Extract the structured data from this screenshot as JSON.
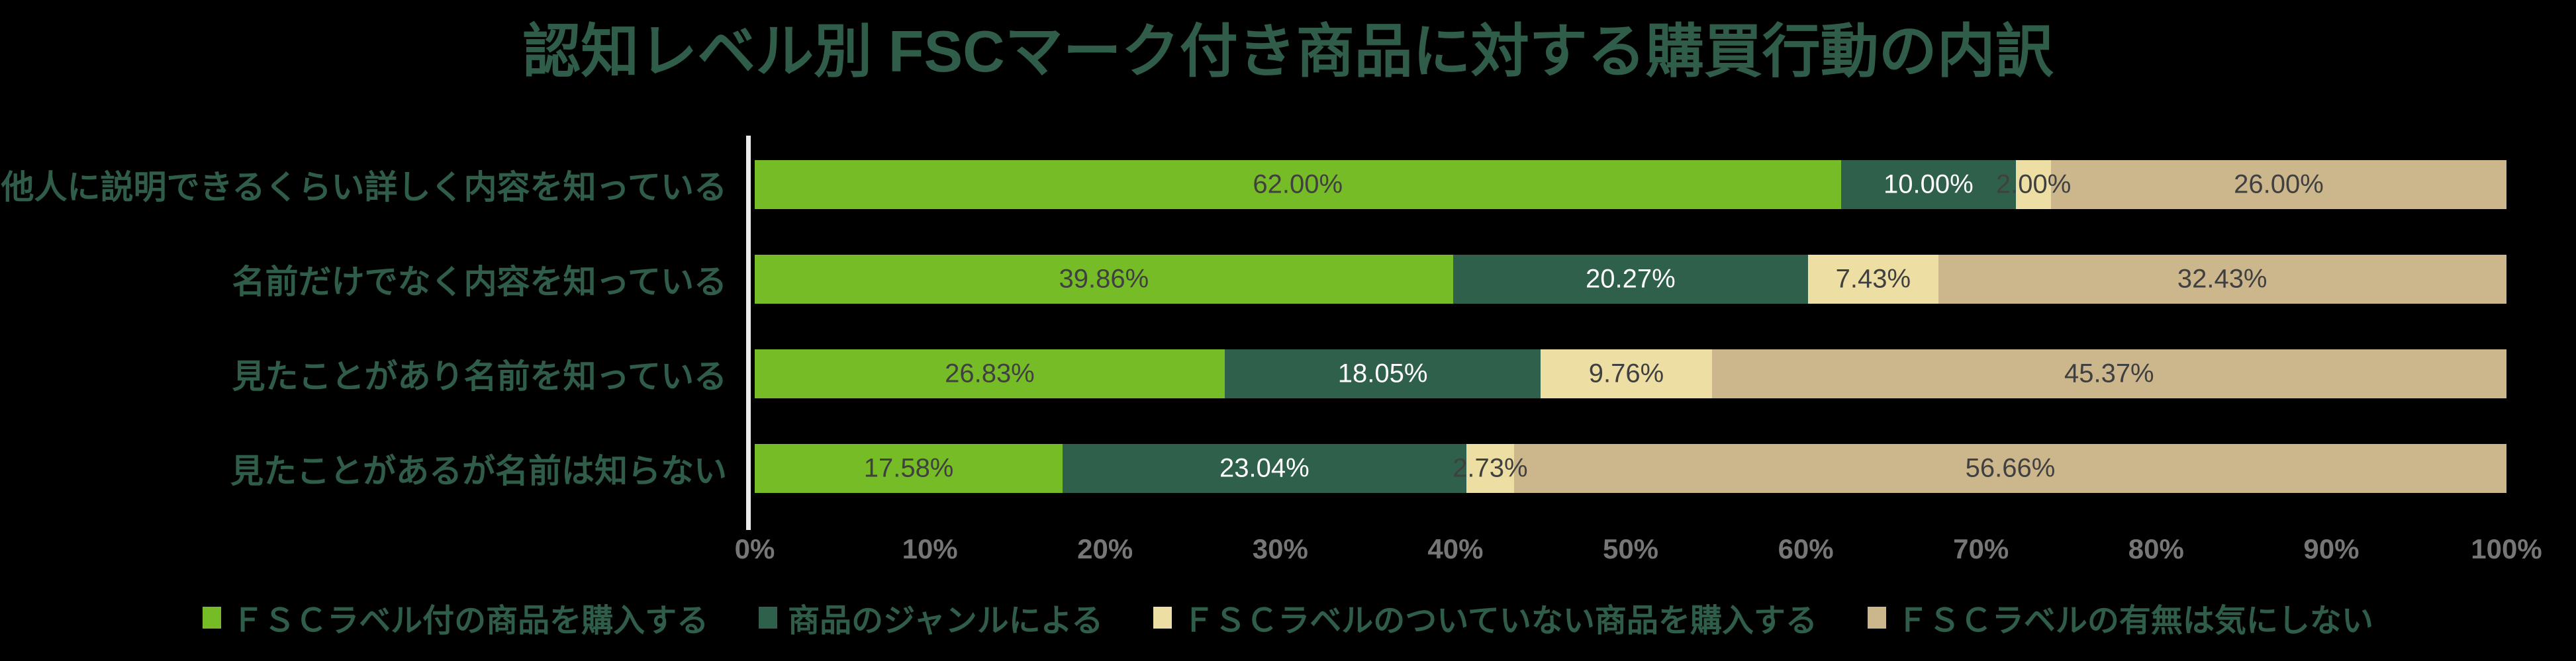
{
  "title": "認知レベル別 FSCマーク付き商品に対する購買行動の内訳",
  "colors": {
    "background": "#000000",
    "text_green": "#2F5D49",
    "axis_line": "#ECECEC",
    "tick_gray": "#767676",
    "data_label_dark": "#404040",
    "data_label_light": "#FFFFFF"
  },
  "chart_data": {
    "type": "bar",
    "orientation": "horizontal",
    "stacked": true,
    "title": "認知レベル別 FSCマーク付き商品に対する購買行動の内訳",
    "categories": [
      "他人に説明できるくらい詳しく内容を知っている",
      "名前だけでなく内容を知っている",
      "見たことがあり名前を知っている",
      "見たことがあるが名前は知らない"
    ],
    "series": [
      {
        "name": "ＦＳＣラベル付の商品を購入する",
        "color": "#76BC26",
        "label_color": "#404040",
        "values": [
          62.0,
          39.86,
          26.83,
          17.58
        ],
        "labels": [
          "62.00%",
          "39.86%",
          "26.83%",
          "17.58%"
        ]
      },
      {
        "name": "商品のジャンルによる",
        "color": "#2E604C",
        "label_color": "#FFFFFF",
        "values": [
          10.0,
          20.27,
          18.05,
          23.04
        ],
        "labels": [
          "10.00%",
          "20.27%",
          "18.05%",
          "23.04%"
        ]
      },
      {
        "name": "ＦＳＣラベルのついていない商品を購入する",
        "color": "#EDDFA4",
        "label_color": "#404040",
        "values": [
          2.0,
          7.43,
          9.76,
          2.73
        ],
        "labels": [
          "2.00%",
          "7.43%",
          "9.76%",
          "2.73%"
        ]
      },
      {
        "name": "ＦＳＣラベルの有無は気にしない",
        "color": "#CCB78D",
        "label_color": "#404040",
        "values": [
          26.0,
          32.43,
          45.37,
          56.66
        ],
        "labels": [
          "26.00%",
          "32.43%",
          "45.37%",
          "56.66%"
        ]
      }
    ],
    "x_ticks": [
      "0%",
      "10%",
      "20%",
      "30%",
      "40%",
      "50%",
      "60%",
      "70%",
      "80%",
      "90%",
      "100%"
    ],
    "xlim": [
      0,
      100
    ],
    "grid": false,
    "legend_position": "bottom"
  }
}
